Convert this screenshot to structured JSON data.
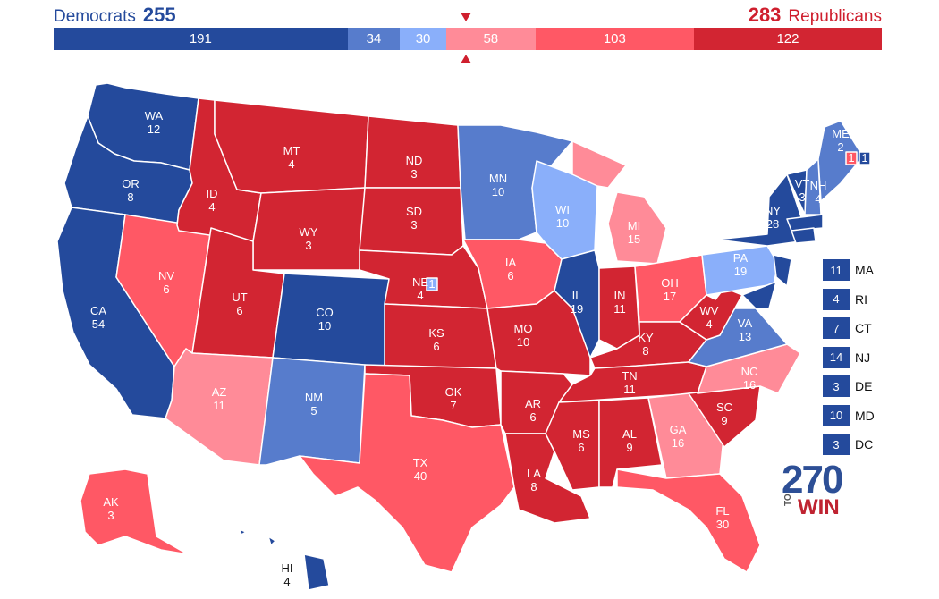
{
  "header": {
    "dem_label": "Democrats",
    "dem_total": "255",
    "rep_total": "283",
    "rep_label": "Republicans"
  },
  "colors": {
    "safe_dem": "#244a9c",
    "likely_dem": "#577ccc",
    "lean_dem": "#8aaffa",
    "lean_rep": "#ff8b98",
    "likely_rep": "#ff5865",
    "safe_rep": "#d22532",
    "dem_text": "#244a9c",
    "rep_text": "#cf1f2e"
  },
  "tally": [
    {
      "category": "safe_dem",
      "value": 191,
      "label": "191"
    },
    {
      "category": "likely_dem",
      "value": 34,
      "label": "34"
    },
    {
      "category": "lean_dem",
      "value": 30,
      "label": "30"
    },
    {
      "category": "lean_rep",
      "value": 58,
      "label": "58"
    },
    {
      "category": "likely_rep",
      "value": 103,
      "label": "103"
    },
    {
      "category": "safe_rep",
      "value": 122,
      "label": "122"
    }
  ],
  "states": [
    {
      "abbr": "WA",
      "votes": "12",
      "rating": "safe_dem"
    },
    {
      "abbr": "OR",
      "votes": "8",
      "rating": "safe_dem"
    },
    {
      "abbr": "CA",
      "votes": "54",
      "rating": "safe_dem"
    },
    {
      "abbr": "NV",
      "votes": "6",
      "rating": "likely_rep"
    },
    {
      "abbr": "ID",
      "votes": "4",
      "rating": "safe_rep"
    },
    {
      "abbr": "MT",
      "votes": "4",
      "rating": "safe_rep"
    },
    {
      "abbr": "WY",
      "votes": "3",
      "rating": "safe_rep"
    },
    {
      "abbr": "UT",
      "votes": "6",
      "rating": "safe_rep"
    },
    {
      "abbr": "AZ",
      "votes": "11",
      "rating": "lean_rep"
    },
    {
      "abbr": "CO",
      "votes": "10",
      "rating": "safe_dem"
    },
    {
      "abbr": "NM",
      "votes": "5",
      "rating": "likely_dem"
    },
    {
      "abbr": "ND",
      "votes": "3",
      "rating": "safe_rep"
    },
    {
      "abbr": "SD",
      "votes": "3",
      "rating": "safe_rep"
    },
    {
      "abbr": "NE",
      "votes": "4",
      "rating": "safe_rep"
    },
    {
      "abbr": "KS",
      "votes": "6",
      "rating": "safe_rep"
    },
    {
      "abbr": "OK",
      "votes": "7",
      "rating": "safe_rep"
    },
    {
      "abbr": "TX",
      "votes": "40",
      "rating": "likely_rep"
    },
    {
      "abbr": "MN",
      "votes": "10",
      "rating": "likely_dem"
    },
    {
      "abbr": "IA",
      "votes": "6",
      "rating": "likely_rep"
    },
    {
      "abbr": "MO",
      "votes": "10",
      "rating": "safe_rep"
    },
    {
      "abbr": "AR",
      "votes": "6",
      "rating": "safe_rep"
    },
    {
      "abbr": "LA",
      "votes": "8",
      "rating": "safe_rep"
    },
    {
      "abbr": "WI",
      "votes": "10",
      "rating": "lean_dem"
    },
    {
      "abbr": "IL",
      "votes": "19",
      "rating": "safe_dem"
    },
    {
      "abbr": "MI",
      "votes": "15",
      "rating": "lean_rep"
    },
    {
      "abbr": "IN",
      "votes": "11",
      "rating": "safe_rep"
    },
    {
      "abbr": "OH",
      "votes": "17",
      "rating": "likely_rep"
    },
    {
      "abbr": "KY",
      "votes": "8",
      "rating": "safe_rep"
    },
    {
      "abbr": "TN",
      "votes": "11",
      "rating": "safe_rep"
    },
    {
      "abbr": "MS",
      "votes": "6",
      "rating": "safe_rep"
    },
    {
      "abbr": "AL",
      "votes": "9",
      "rating": "safe_rep"
    },
    {
      "abbr": "GA",
      "votes": "16",
      "rating": "lean_rep"
    },
    {
      "abbr": "FL",
      "votes": "30",
      "rating": "likely_rep"
    },
    {
      "abbr": "SC",
      "votes": "9",
      "rating": "safe_rep"
    },
    {
      "abbr": "NC",
      "votes": "16",
      "rating": "lean_rep"
    },
    {
      "abbr": "VA",
      "votes": "13",
      "rating": "likely_dem"
    },
    {
      "abbr": "WV",
      "votes": "4",
      "rating": "safe_rep"
    },
    {
      "abbr": "PA",
      "votes": "19",
      "rating": "lean_dem"
    },
    {
      "abbr": "NY",
      "votes": "28",
      "rating": "safe_dem"
    },
    {
      "abbr": "VT",
      "votes": "3",
      "rating": "safe_dem"
    },
    {
      "abbr": "NH",
      "votes": "4",
      "rating": "likely_dem"
    },
    {
      "abbr": "ME",
      "votes": "2",
      "rating": "likely_dem"
    },
    {
      "abbr": "AK",
      "votes": "3",
      "rating": "likely_rep"
    },
    {
      "abbr": "HI",
      "votes": "4",
      "rating": "safe_dem"
    }
  ],
  "split_districts": {
    "ne_district": {
      "votes": "1",
      "rating": "lean_dem"
    },
    "me_district_1": {
      "votes": "1",
      "rating": "likely_rep"
    },
    "me_district_2": {
      "votes": "1",
      "rating": "safe_dem"
    }
  },
  "small_states": [
    {
      "abbr": "MA",
      "votes": "11",
      "rating": "safe_dem"
    },
    {
      "abbr": "RI",
      "votes": "4",
      "rating": "safe_dem"
    },
    {
      "abbr": "CT",
      "votes": "7",
      "rating": "safe_dem"
    },
    {
      "abbr": "NJ",
      "votes": "14",
      "rating": "safe_dem"
    },
    {
      "abbr": "DE",
      "votes": "3",
      "rating": "safe_dem"
    },
    {
      "abbr": "MD",
      "votes": "10",
      "rating": "safe_dem"
    },
    {
      "abbr": "DC",
      "votes": "3",
      "rating": "safe_dem"
    }
  ],
  "logo": {
    "number": "270",
    "to": "TO",
    "win": "WIN"
  }
}
